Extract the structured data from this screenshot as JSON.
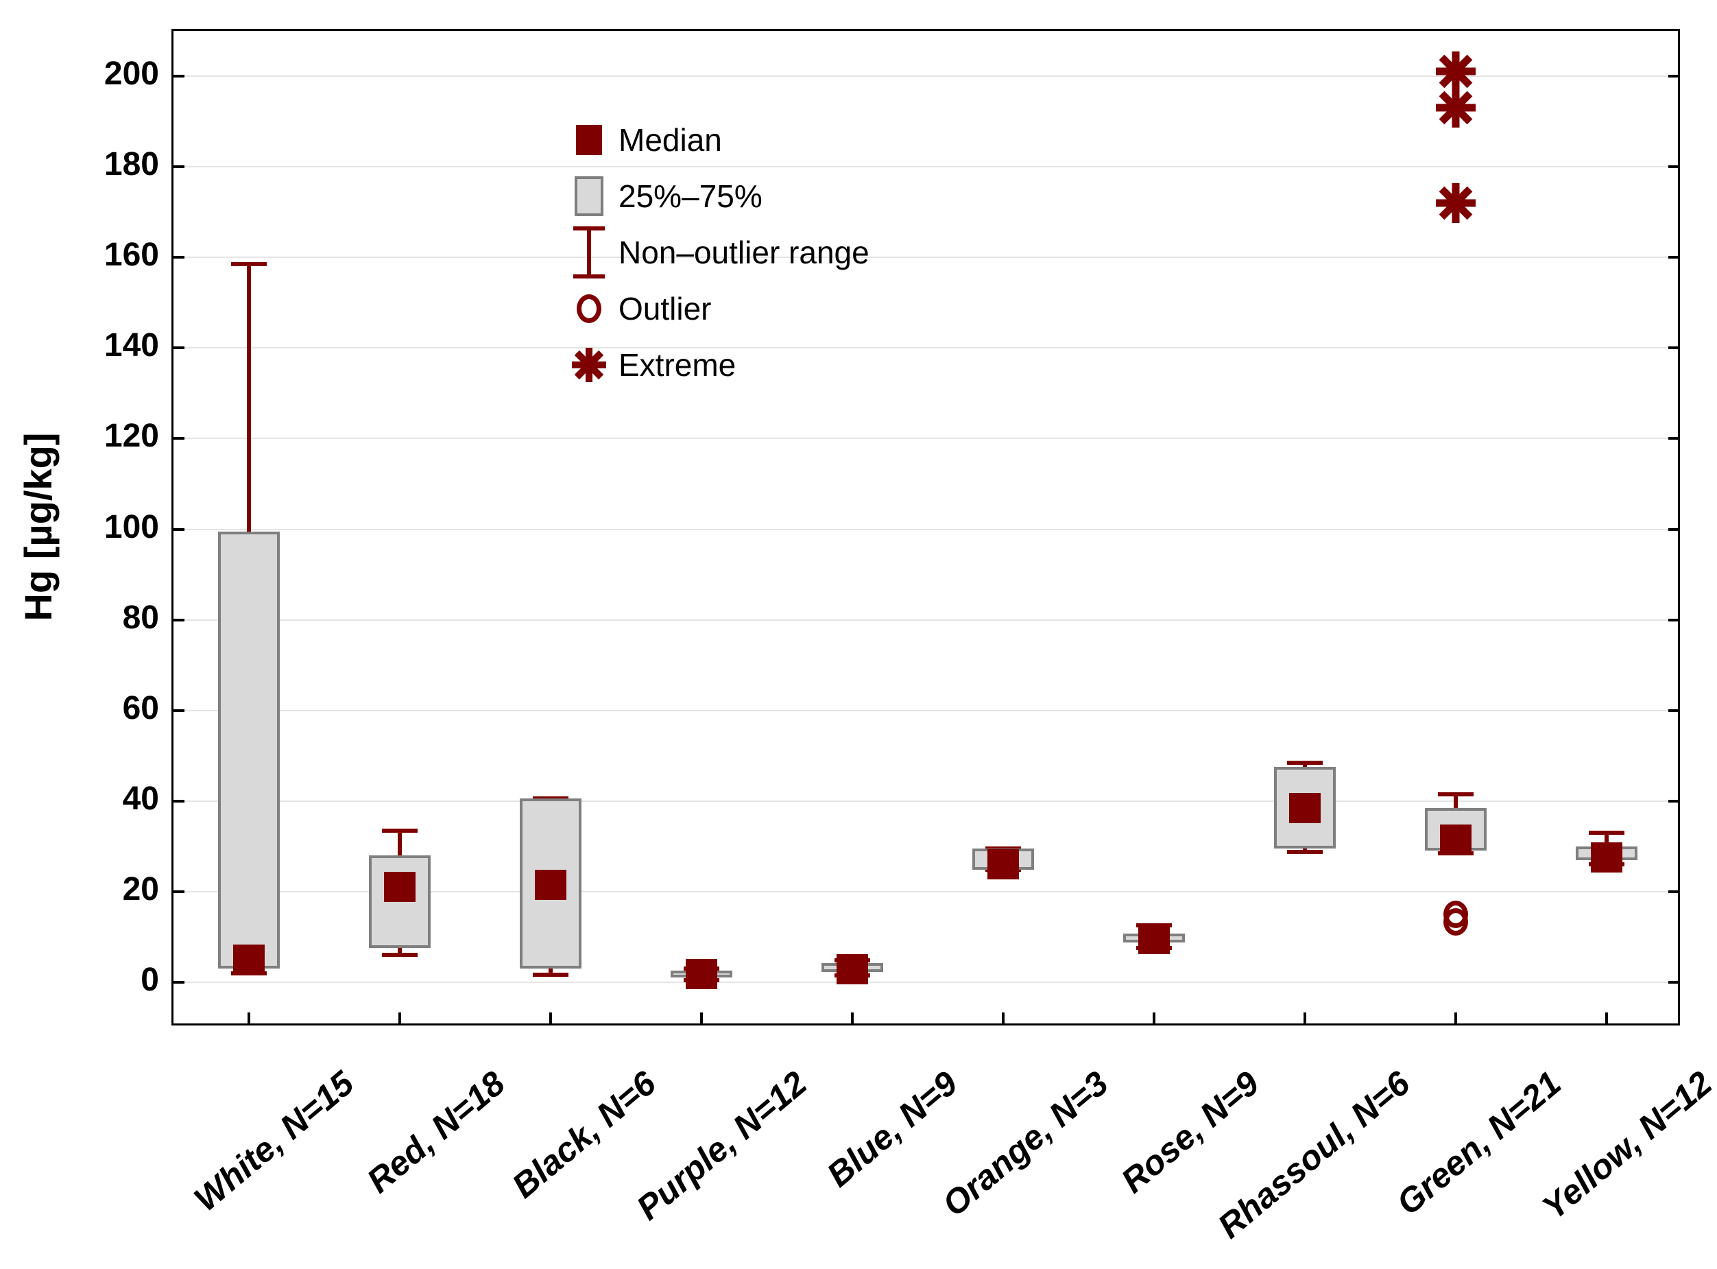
{
  "chart_data": {
    "type": "boxplot",
    "title": "",
    "xlabel": "",
    "ylabel": "Hg [µg/kg]",
    "ylim": [
      -10,
      210
    ],
    "yticks": [
      0,
      20,
      40,
      60,
      80,
      100,
      120,
      140,
      160,
      180,
      200
    ],
    "grid": "horizontal gridlines at every labeled tick",
    "legend": {
      "position": "top-left-inside",
      "items": [
        {
          "symbol": "median-square",
          "label": "Median"
        },
        {
          "symbol": "iqr-box",
          "label": "25%–75%"
        },
        {
          "symbol": "whisker-range",
          "label": "Non–outlier range"
        },
        {
          "symbol": "outlier-circle",
          "label": "Outlier"
        },
        {
          "symbol": "extreme-asterisk",
          "label": "Extreme"
        }
      ]
    },
    "categories": [
      "White, N=15",
      "Red, N=18",
      "Black, N=6",
      "Purple, N=12",
      "Blue, N=9",
      "Orange, N=3",
      "Rose, N=9",
      "Rhassoul, N=6",
      "Green, N=21",
      "Yellow, N=12"
    ],
    "boxes": [
      {
        "category": "White, N=15",
        "n": 15,
        "median": 5,
        "q1": 3,
        "q3": 99.5,
        "whisker_low": 2,
        "whisker_high": 158.5,
        "outliers": [],
        "extremes": []
      },
      {
        "category": "Red, N=18",
        "n": 18,
        "median": 21,
        "q1": 7.5,
        "q3": 28,
        "whisker_low": 6,
        "whisker_high": 33.5,
        "outliers": [],
        "extremes": []
      },
      {
        "category": "Black, N=6",
        "n": 6,
        "median": 21.5,
        "q1": 3,
        "q3": 40.5,
        "whisker_low": 1.7,
        "whisker_high": 40.5,
        "outliers": [],
        "extremes": []
      },
      {
        "category": "Purple, N=12",
        "n": 12,
        "median": 1.8,
        "q1": 1.1,
        "q3": 2.5,
        "whisker_low": 0.5,
        "whisker_high": 3,
        "outliers": [],
        "extremes": []
      },
      {
        "category": "Blue, N=9",
        "n": 9,
        "median": 2.8,
        "q1": 2.2,
        "q3": 4.2,
        "whisker_low": 1.5,
        "whisker_high": 4.8,
        "outliers": [],
        "extremes": []
      },
      {
        "category": "Orange, N=3",
        "n": 3,
        "median": 26,
        "q1": 24.8,
        "q3": 29.5,
        "whisker_low": 24.8,
        "whisker_high": 29.5,
        "outliers": [],
        "extremes": []
      },
      {
        "category": "Rose, N=9",
        "n": 9,
        "median": 9.5,
        "q1": 8.8,
        "q3": 10.8,
        "whisker_low": 7.5,
        "whisker_high": 12.5,
        "outliers": [],
        "extremes": []
      },
      {
        "category": "Rhassoul, N=6",
        "n": 6,
        "median": 38.5,
        "q1": 29.5,
        "q3": 47.5,
        "whisker_low": 28.8,
        "whisker_high": 48.5,
        "outliers": [],
        "extremes": []
      },
      {
        "category": "Green, N=21",
        "n": 21,
        "median": 31.5,
        "q1": 29,
        "q3": 38.5,
        "whisker_low": 28.5,
        "whisker_high": 41.5,
        "outliers": [
          15,
          13.3
        ],
        "extremes": [
          201,
          193,
          172
        ]
      },
      {
        "category": "Yellow, N=12",
        "n": 12,
        "median": 27.5,
        "q1": 27,
        "q3": 30,
        "whisker_low": 26,
        "whisker_high": 33,
        "outliers": [],
        "extremes": []
      }
    ],
    "colors": {
      "marker": "#7f0000",
      "box_fill": "#d9d9d9",
      "box_border": "#7f7f7f",
      "gridline": "#e4e4e4",
      "frame": "#000000",
      "text": "#000000"
    }
  }
}
